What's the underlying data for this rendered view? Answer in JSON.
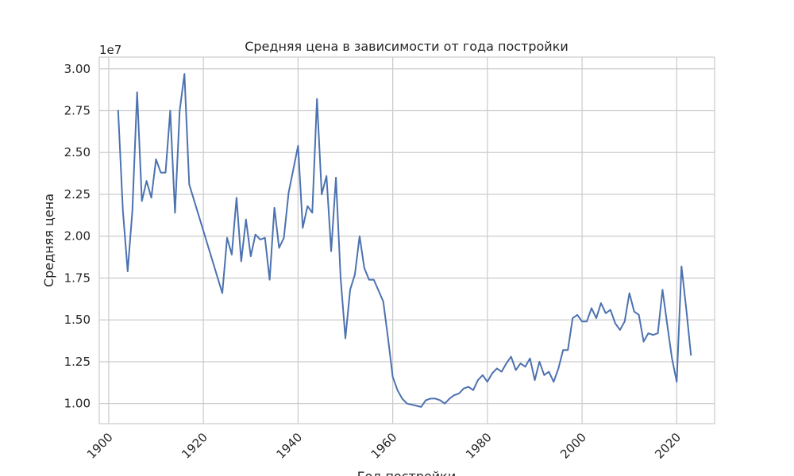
{
  "chart_data": {
    "type": "line",
    "title": "Средняя цена в зависимости от года постройки",
    "xlabel": "Год постройки",
    "ylabel": "Средняя цена",
    "y_offset_text": "1e7",
    "x_ticks": [
      "1900",
      "1920",
      "1940",
      "1960",
      "1980",
      "2000",
      "2020"
    ],
    "y_ticks": [
      "1.00",
      "1.25",
      "1.50",
      "1.75",
      "2.00",
      "2.25",
      "2.50",
      "2.75",
      "3.00"
    ],
    "xlim": [
      1898,
      2028
    ],
    "ylim": [
      0.88,
      3.07
    ],
    "y_scale_factor": 10000000,
    "grid": true,
    "line_color": "#4c72b0",
    "grid_color": "#cccccc",
    "series": [
      {
        "x": [
          1902,
          1903,
          1904,
          1905,
          1906,
          1907,
          1908,
          1909,
          1910,
          1911,
          1912,
          1913,
          1914,
          1915,
          1916,
          1917,
          1924,
          1925,
          1926,
          1927,
          1928,
          1929,
          1930,
          1931,
          1932,
          1933,
          1934,
          1935,
          1936,
          1937,
          1938,
          1940,
          1941,
          1942,
          1943,
          1944,
          1945,
          1946,
          1947,
          1948,
          1949,
          1950,
          1951,
          1952,
          1953,
          1954,
          1955,
          1956,
          1958,
          1959,
          1960,
          1961,
          1962,
          1963,
          1966,
          1967,
          1968,
          1969,
          1970,
          1971,
          1972,
          1973,
          1974,
          1975,
          1976,
          1977,
          1978,
          1979,
          1980,
          1981,
          1982,
          1983,
          1984,
          1985,
          1986,
          1987,
          1988,
          1989,
          1990,
          1991,
          1992,
          1993,
          1994,
          1995,
          1996,
          1997,
          1998,
          1999,
          2000,
          2001,
          2002,
          2003,
          2004,
          2005,
          2006,
          2007,
          2008,
          2009,
          2010,
          2011,
          2012,
          2013,
          2014,
          2015,
          2016,
          2017,
          2018,
          2019,
          2020,
          2021,
          2022,
          2023
        ],
        "y": [
          2.75,
          2.15,
          1.79,
          2.15,
          2.86,
          2.21,
          2.33,
          2.23,
          2.46,
          2.38,
          2.38,
          2.75,
          2.14,
          2.75,
          2.97,
          2.31,
          1.66,
          1.99,
          1.89,
          2.23,
          1.85,
          2.1,
          1.88,
          2.01,
          1.98,
          1.99,
          1.74,
          2.17,
          1.93,
          1.99,
          2.26,
          2.54,
          2.05,
          2.18,
          2.14,
          2.82,
          2.25,
          2.36,
          1.91,
          2.35,
          1.75,
          1.39,
          1.68,
          1.77,
          2.0,
          1.81,
          1.74,
          1.74,
          1.61,
          1.39,
          1.16,
          1.08,
          1.03,
          1.0,
          0.98,
          1.02,
          1.03,
          1.03,
          1.02,
          1.0,
          1.03,
          1.05,
          1.06,
          1.09,
          1.1,
          1.08,
          1.14,
          1.17,
          1.13,
          1.18,
          1.21,
          1.19,
          1.24,
          1.28,
          1.2,
          1.24,
          1.22,
          1.27,
          1.14,
          1.25,
          1.17,
          1.19,
          1.13,
          1.21,
          1.32,
          1.32,
          1.51,
          1.53,
          1.49,
          1.49,
          1.57,
          1.51,
          1.6,
          1.54,
          1.56,
          1.48,
          1.44,
          1.49,
          1.66,
          1.55,
          1.53,
          1.37,
          1.42,
          1.41,
          1.42,
          1.68,
          1.47,
          1.27,
          1.13,
          1.82,
          1.57,
          1.29
        ]
      }
    ]
  }
}
